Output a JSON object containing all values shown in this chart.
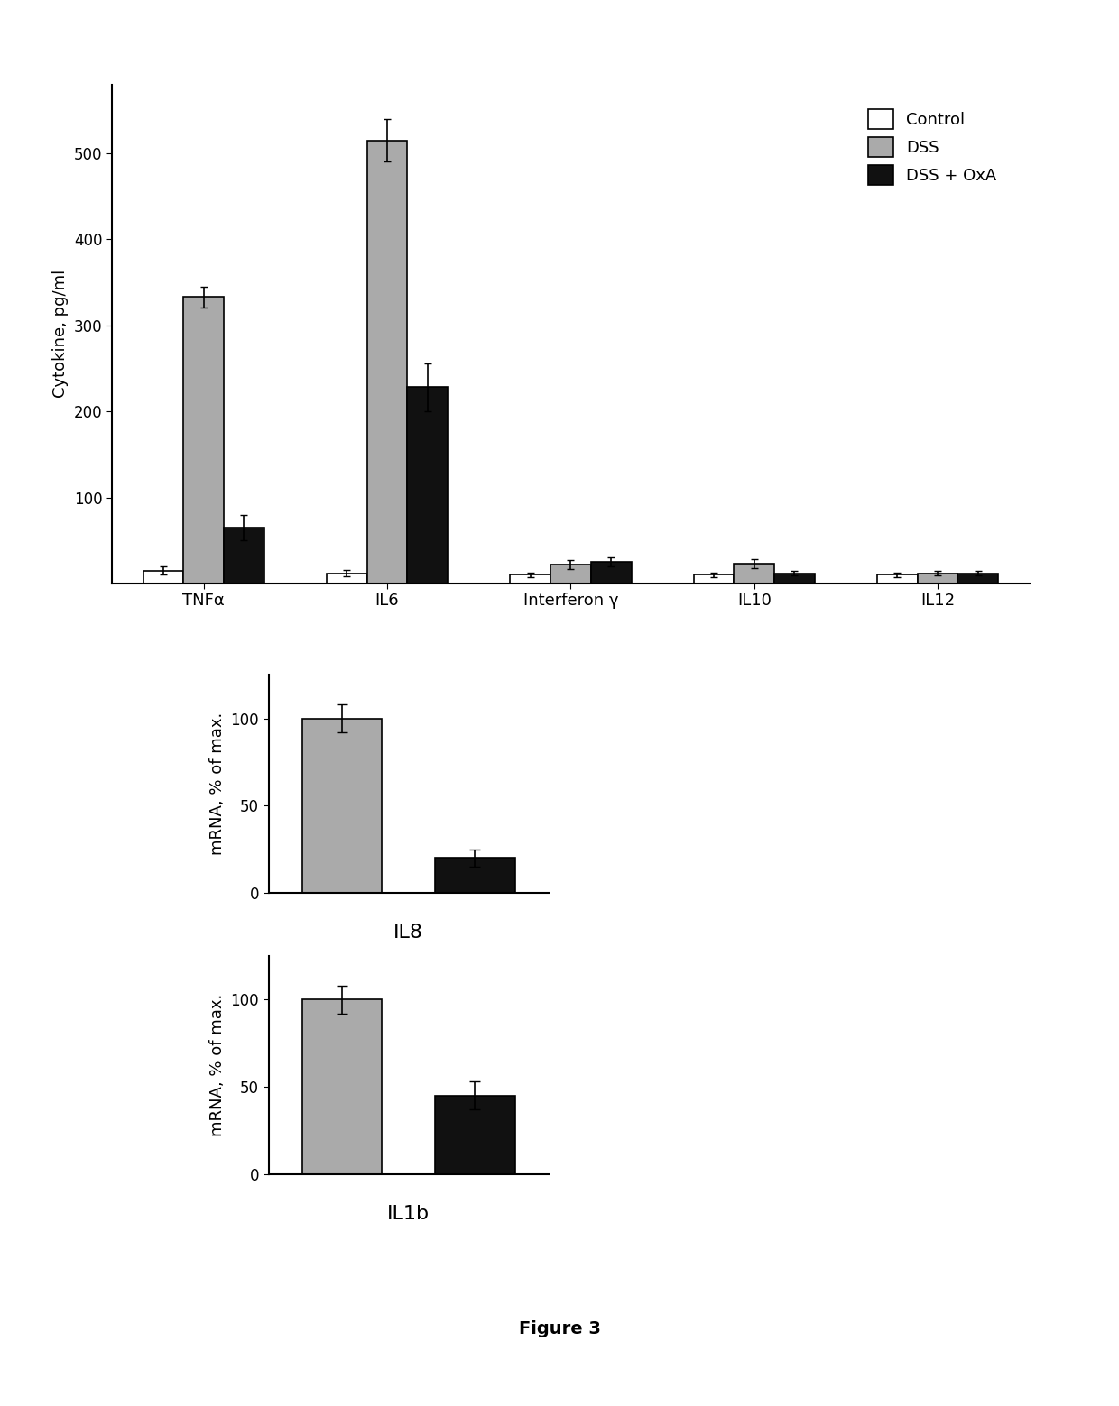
{
  "top_chart": {
    "categories": [
      "TNFα",
      "IL6",
      "Interferon γ",
      "IL10",
      "IL12"
    ],
    "control_values": [
      15,
      12,
      10,
      10,
      10
    ],
    "control_errors": [
      5,
      4,
      3,
      3,
      3
    ],
    "dss_values": [
      333,
      515,
      22,
      23,
      12
    ],
    "dss_errors": [
      12,
      25,
      5,
      5,
      3
    ],
    "dss_oxa_values": [
      65,
      228,
      25,
      12,
      12
    ],
    "dss_oxa_errors": [
      15,
      28,
      5,
      3,
      3
    ],
    "ylabel": "Cytokine, pg/ml",
    "ylim": [
      0,
      580
    ],
    "yticks": [
      100,
      200,
      300,
      400,
      500
    ],
    "color_control": "#ffffff",
    "color_dss": "#aaaaaa",
    "color_dss_oxa": "#111111",
    "bar_width": 0.22,
    "bar_edgecolor": "#000000"
  },
  "il8_chart": {
    "dss_value": 100,
    "dss_error": 8,
    "dss_oxa_value": 20,
    "dss_oxa_error": 5,
    "ylabel": "mRNA, % of max.",
    "xlabel": "IL8",
    "ylim": [
      0,
      125
    ],
    "yticks": [
      0,
      50,
      100
    ],
    "color_dss": "#aaaaaa",
    "color_dss_oxa": "#111111",
    "bar_width": 0.6
  },
  "il1b_chart": {
    "dss_value": 100,
    "dss_error": 8,
    "dss_oxa_value": 45,
    "dss_oxa_error": 8,
    "ylabel": "mRNA, % of max.",
    "xlabel": "IL1b",
    "ylim": [
      0,
      125
    ],
    "yticks": [
      0,
      50,
      100
    ],
    "color_dss": "#aaaaaa",
    "color_dss_oxa": "#111111",
    "bar_width": 0.6
  },
  "legend_labels": [
    "Control",
    "DSS",
    "DSS + OxA"
  ],
  "figure_label": "Figure 3",
  "background_color": "#ffffff"
}
